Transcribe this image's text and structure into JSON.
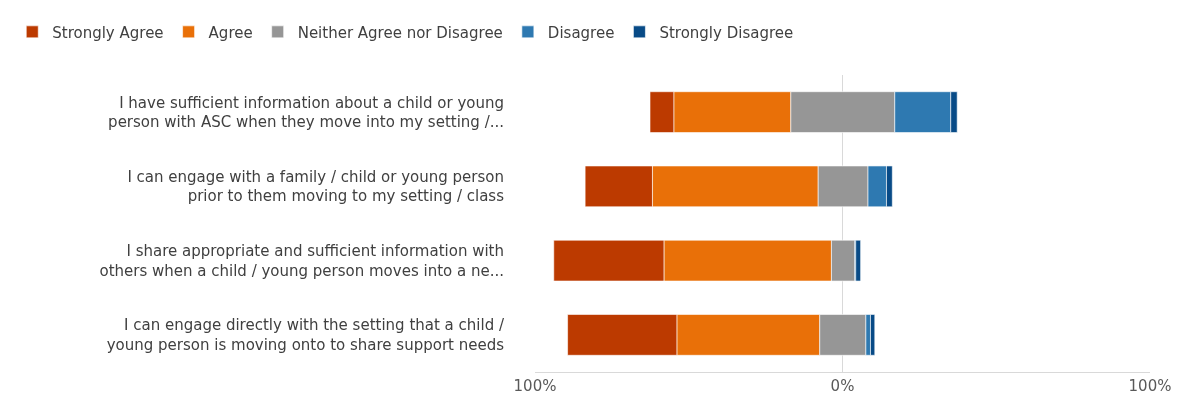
{
  "chart_data": {
    "type": "bar",
    "orientation": "horizontal",
    "categories": [
      "I have sufficient information about a child or young\nperson with ASC when they move into my setting /...",
      "I can engage with a family / child or young person\nprior to them moving to my setting / class",
      "I share appropriate and sufficient information with\nothers when a child / young person moves into a ne...",
      "I can engage directly with the setting that a child /\nyoung person is moving onto to share support needs"
    ],
    "series": [
      {
        "name": "Strongly Agree",
        "color": "#bc3a00",
        "base": [
          -62.6,
          -83.7,
          -93.9,
          -89.4
        ],
        "values": [
          7.8,
          21.9,
          35.9,
          35.6
        ]
      },
      {
        "name": "Agree",
        "color": "#e97008",
        "base": [
          -54.8,
          -61.8,
          -58.0,
          -53.8
        ],
        "values": [
          38.0,
          53.9,
          54.4,
          46.4
        ]
      },
      {
        "name": "Neither Agree nor Disagree",
        "color": "#969696",
        "base": [
          -16.8,
          -7.9,
          -3.6,
          -7.4
        ],
        "values": [
          33.8,
          16.2,
          7.6,
          15.0
        ]
      },
      {
        "name": "Disagree",
        "color": "#2e79b1",
        "base": [
          17.0,
          8.3,
          4.0,
          7.6
        ],
        "values": [
          18.2,
          6.0,
          0.3,
          1.5
        ]
      },
      {
        "name": "Strongly Disagree",
        "color": "#084b87",
        "base": [
          35.2,
          14.3,
          4.3,
          9.1
        ],
        "values": [
          2.1,
          1.9,
          1.6,
          1.4
        ]
      }
    ],
    "xlim": [
      -100,
      100
    ],
    "xticks": [
      {
        "value": -100,
        "label": "100%"
      },
      {
        "value": 0,
        "label": "0%"
      },
      {
        "value": 100,
        "label": "100%"
      }
    ],
    "grid": "x",
    "legend": "top left"
  }
}
